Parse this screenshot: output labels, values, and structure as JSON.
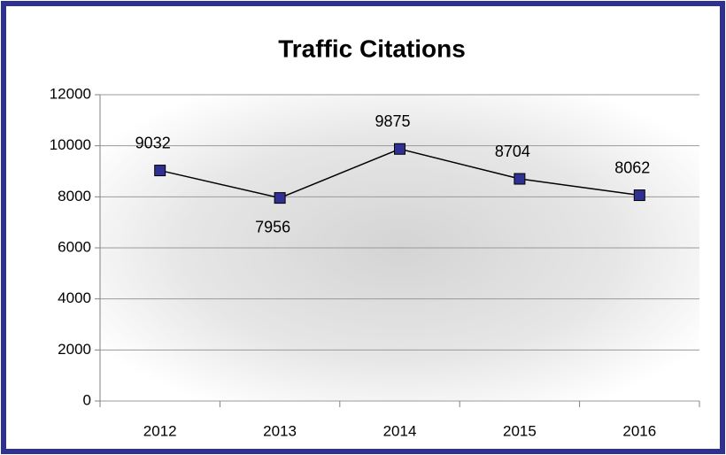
{
  "chart_data": {
    "type": "line",
    "title": "Traffic Citations",
    "categories": [
      "2012",
      "2013",
      "2014",
      "2015",
      "2016"
    ],
    "values": [
      9032,
      7956,
      9875,
      8704,
      8062
    ],
    "color": "#2e3192",
    "line_color": "#000000",
    "ylim": [
      0,
      12000
    ],
    "yticks": [
      0,
      2000,
      4000,
      6000,
      8000,
      10000,
      12000
    ],
    "grid": true
  }
}
